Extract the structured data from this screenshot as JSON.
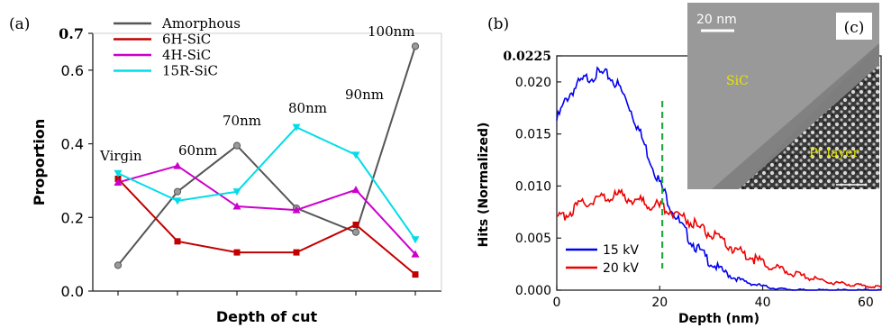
{
  "panel_labels": {
    "a": "(a)",
    "b": "(b)",
    "c": "(c)"
  },
  "chart_data": [
    {
      "type": "line",
      "panel": "(a)",
      "xlabel": "Depth of cut",
      "ylabel": "Proportion",
      "ylim": [
        0.0,
        0.7
      ],
      "yticks": [
        "0.0",
        "0.2",
        "0.4",
        "0.6",
        "0.7"
      ],
      "categories": [
        "Virgin",
        "60nm",
        "70nm",
        "80nm",
        "90nm",
        "100nm"
      ],
      "grid": false,
      "legend_position": "top-left",
      "series": [
        {
          "name": "Amorphous",
          "color": "#555555",
          "marker": "circle",
          "values": [
            0.07,
            0.27,
            0.395,
            0.225,
            0.16,
            0.665
          ]
        },
        {
          "name": "6H-SiC",
          "color": "#c00000",
          "marker": "square",
          "values": [
            0.305,
            0.135,
            0.105,
            0.105,
            0.18,
            0.045
          ]
        },
        {
          "name": "4H-SiC",
          "color": "#cc00cc",
          "marker": "triangle-up",
          "values": [
            0.295,
            0.34,
            0.23,
            0.22,
            0.275,
            0.1
          ]
        },
        {
          "name": "15R-SiC",
          "color": "#00dde8",
          "marker": "triangle-down",
          "values": [
            0.32,
            0.245,
            0.27,
            0.445,
            0.37,
            0.14
          ]
        }
      ]
    },
    {
      "type": "line",
      "panel": "(b)",
      "xlabel": "Depth (nm)",
      "ylabel": "Hits (Normalized)",
      "xlim": [
        0,
        63
      ],
      "ylim": [
        0,
        0.0225
      ],
      "xticks": [
        "0",
        "20",
        "40",
        "60"
      ],
      "yticks": [
        "0.000",
        "0.005",
        "0.010",
        "0.015",
        "0.020",
        "0.0225"
      ],
      "legend_position": "bottom-left",
      "reference_line": {
        "x": 20.5,
        "color": "#22aa44",
        "style": "dashed"
      },
      "series": [
        {
          "name": "15 kV",
          "color": "#0000ee",
          "x": [
            0,
            2,
            4,
            6,
            8,
            10,
            12,
            14,
            16,
            18,
            20,
            22,
            24,
            26,
            28,
            30,
            32,
            34,
            36,
            38,
            40,
            42,
            44,
            46,
            48,
            50,
            52,
            54,
            56,
            58,
            60,
            63
          ],
          "y": [
            0.0163,
            0.0185,
            0.0197,
            0.0204,
            0.0208,
            0.0206,
            0.0196,
            0.0178,
            0.0153,
            0.0127,
            0.0103,
            0.0082,
            0.0063,
            0.0048,
            0.0036,
            0.0026,
            0.0019,
            0.0013,
            0.0009,
            0.0006,
            0.0004,
            0.0002,
            0.0001,
            5e-05,
            0,
            0,
            0,
            0,
            0,
            0,
            0,
            0
          ]
        },
        {
          "name": "20 kV",
          "color": "#ee0000",
          "x": [
            0,
            2,
            4,
            6,
            8,
            10,
            12,
            14,
            16,
            18,
            20,
            22,
            24,
            26,
            28,
            30,
            32,
            34,
            36,
            38,
            40,
            42,
            44,
            46,
            48,
            50,
            52,
            54,
            56,
            58,
            60,
            63
          ],
          "y": [
            0.0067,
            0.0074,
            0.008,
            0.0085,
            0.0088,
            0.009,
            0.0091,
            0.0089,
            0.0086,
            0.0083,
            0.008,
            0.0077,
            0.0072,
            0.0066,
            0.0059,
            0.0053,
            0.0047,
            0.0041,
            0.0036,
            0.0031,
            0.0026,
            0.0022,
            0.0019,
            0.0016,
            0.0013,
            0.0011,
            0.0009,
            0.0007,
            0.0006,
            0.0005,
            0.0004,
            0.0003
          ]
        }
      ]
    }
  ],
  "inset": {
    "scale_bar_label": "20 nm",
    "region_labels": {
      "sic": "SiC",
      "pt": "Pt layer"
    }
  }
}
